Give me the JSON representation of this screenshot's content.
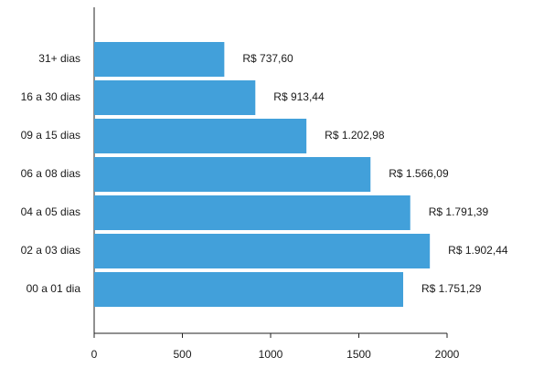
{
  "chart_data": {
    "type": "bar",
    "orientation": "horizontal",
    "title": "",
    "xlabel": "",
    "ylabel": "",
    "categories": [
      "00 a 01 dia",
      "02 a 03 dias",
      "04 a 05 dias",
      "06 a 08 dias",
      "09 a 15 dias",
      "16 a 30 dias",
      "31+ dias"
    ],
    "values": [
      1751.29,
      1902.44,
      1791.39,
      1566.09,
      1202.98,
      913.44,
      737.6
    ],
    "value_labels": [
      "R$ 1.751,29",
      "R$ 1.902,44",
      "R$ 1.791,39",
      "R$ 1.566,09",
      "R$ 1.202,98",
      "R$ 913,44",
      "R$ 737,60"
    ],
    "xlim": [
      0,
      2000
    ],
    "xticks": [
      "0",
      "500",
      "1000",
      "1500",
      "2000"
    ],
    "xtick_values": [
      0,
      500,
      1000,
      1500,
      2000
    ],
    "grid": false,
    "bar_color": "#42A0DA"
  }
}
